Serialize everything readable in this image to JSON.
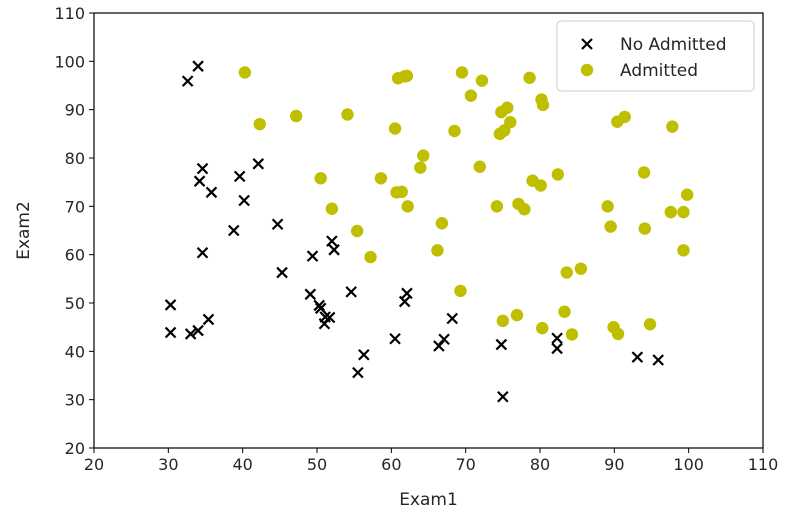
{
  "chart_data": {
    "type": "scatter",
    "title": "",
    "xlabel": "Exam1",
    "ylabel": "Exam2",
    "xlim": [
      20,
      110
    ],
    "ylim": [
      20,
      110
    ],
    "xticks": [
      "20",
      "30",
      "40",
      "50",
      "60",
      "70",
      "80",
      "90",
      "100",
      "110"
    ],
    "yticks": [
      "20",
      "30",
      "40",
      "50",
      "60",
      "70",
      "80",
      "90",
      "100",
      "110"
    ],
    "grid": false,
    "legend_position": "top-right",
    "series": [
      {
        "name": "No Admitted",
        "marker": "x",
        "color": "#000000",
        "points": [
          [
            32.6,
            95.9
          ],
          [
            34.0,
            99.0
          ],
          [
            34.6,
            77.8
          ],
          [
            34.2,
            75.2
          ],
          [
            35.8,
            72.9
          ],
          [
            42.1,
            78.8
          ],
          [
            39.6,
            76.2
          ],
          [
            40.2,
            71.2
          ],
          [
            38.8,
            65.0
          ],
          [
            44.7,
            66.3
          ],
          [
            34.6,
            60.4
          ],
          [
            45.3,
            56.3
          ],
          [
            30.3,
            49.6
          ],
          [
            30.3,
            43.9
          ],
          [
            33.0,
            43.6
          ],
          [
            34.0,
            44.3
          ],
          [
            35.4,
            46.6
          ],
          [
            49.1,
            51.8
          ],
          [
            49.4,
            59.7
          ],
          [
            50.3,
            49.5
          ],
          [
            50.5,
            48.9
          ],
          [
            51.1,
            47.1
          ],
          [
            51.0,
            45.7
          ],
          [
            51.7,
            47.0
          ],
          [
            52.0,
            62.8
          ],
          [
            52.3,
            61.0
          ],
          [
            54.6,
            52.3
          ],
          [
            55.5,
            35.6
          ],
          [
            56.3,
            39.3
          ],
          [
            60.5,
            42.6
          ],
          [
            61.8,
            50.3
          ],
          [
            62.1,
            52.0
          ],
          [
            66.4,
            41.1
          ],
          [
            67.1,
            42.5
          ],
          [
            68.2,
            46.8
          ],
          [
            74.8,
            41.4
          ],
          [
            75.0,
            30.6
          ],
          [
            82.3,
            42.7
          ],
          [
            82.3,
            40.6
          ],
          [
            93.1,
            38.8
          ],
          [
            95.9,
            38.2
          ]
        ]
      },
      {
        "name": "Admitted",
        "marker": "o",
        "color": "#bfbf00",
        "points": [
          [
            40.3,
            97.7
          ],
          [
            42.3,
            87.0
          ],
          [
            47.2,
            88.7
          ],
          [
            54.1,
            89.0
          ],
          [
            60.9,
            96.5
          ],
          [
            61.8,
            96.9
          ],
          [
            62.1,
            97.0
          ],
          [
            69.5,
            97.7
          ],
          [
            70.7,
            92.9
          ],
          [
            72.2,
            96.0
          ],
          [
            78.6,
            96.6
          ],
          [
            80.2,
            92.1
          ],
          [
            80.4,
            91.0
          ],
          [
            74.8,
            89.5
          ],
          [
            75.6,
            90.4
          ],
          [
            75.2,
            85.7
          ],
          [
            74.6,
            85.0
          ],
          [
            76.0,
            87.4
          ],
          [
            68.5,
            85.6
          ],
          [
            60.5,
            86.1
          ],
          [
            64.3,
            80.5
          ],
          [
            63.9,
            78.0
          ],
          [
            71.9,
            78.2
          ],
          [
            50.5,
            75.8
          ],
          [
            58.6,
            75.8
          ],
          [
            60.7,
            72.9
          ],
          [
            61.4,
            73.0
          ],
          [
            62.2,
            70.0
          ],
          [
            52.0,
            69.5
          ],
          [
            55.4,
            64.9
          ],
          [
            57.2,
            59.5
          ],
          [
            66.8,
            66.5
          ],
          [
            66.2,
            60.9
          ],
          [
            69.3,
            52.5
          ],
          [
            74.2,
            70.0
          ],
          [
            77.1,
            70.5
          ],
          [
            77.9,
            69.4
          ],
          [
            79.0,
            75.3
          ],
          [
            80.1,
            74.3
          ],
          [
            82.4,
            76.6
          ],
          [
            83.6,
            56.3
          ],
          [
            85.5,
            57.1
          ],
          [
            75.0,
            46.3
          ],
          [
            76.9,
            47.5
          ],
          [
            80.3,
            44.8
          ],
          [
            83.3,
            48.2
          ],
          [
            84.3,
            43.5
          ],
          [
            89.9,
            45.0
          ],
          [
            90.5,
            43.6
          ],
          [
            94.8,
            45.6
          ],
          [
            89.1,
            70.0
          ],
          [
            89.5,
            65.8
          ],
          [
            94.1,
            65.4
          ],
          [
            94.0,
            77.0
          ],
          [
            90.4,
            87.5
          ],
          [
            91.4,
            88.5
          ],
          [
            97.8,
            86.5
          ],
          [
            97.6,
            68.8
          ],
          [
            99.3,
            68.8
          ],
          [
            99.8,
            72.4
          ],
          [
            99.3,
            60.9
          ]
        ]
      }
    ]
  }
}
